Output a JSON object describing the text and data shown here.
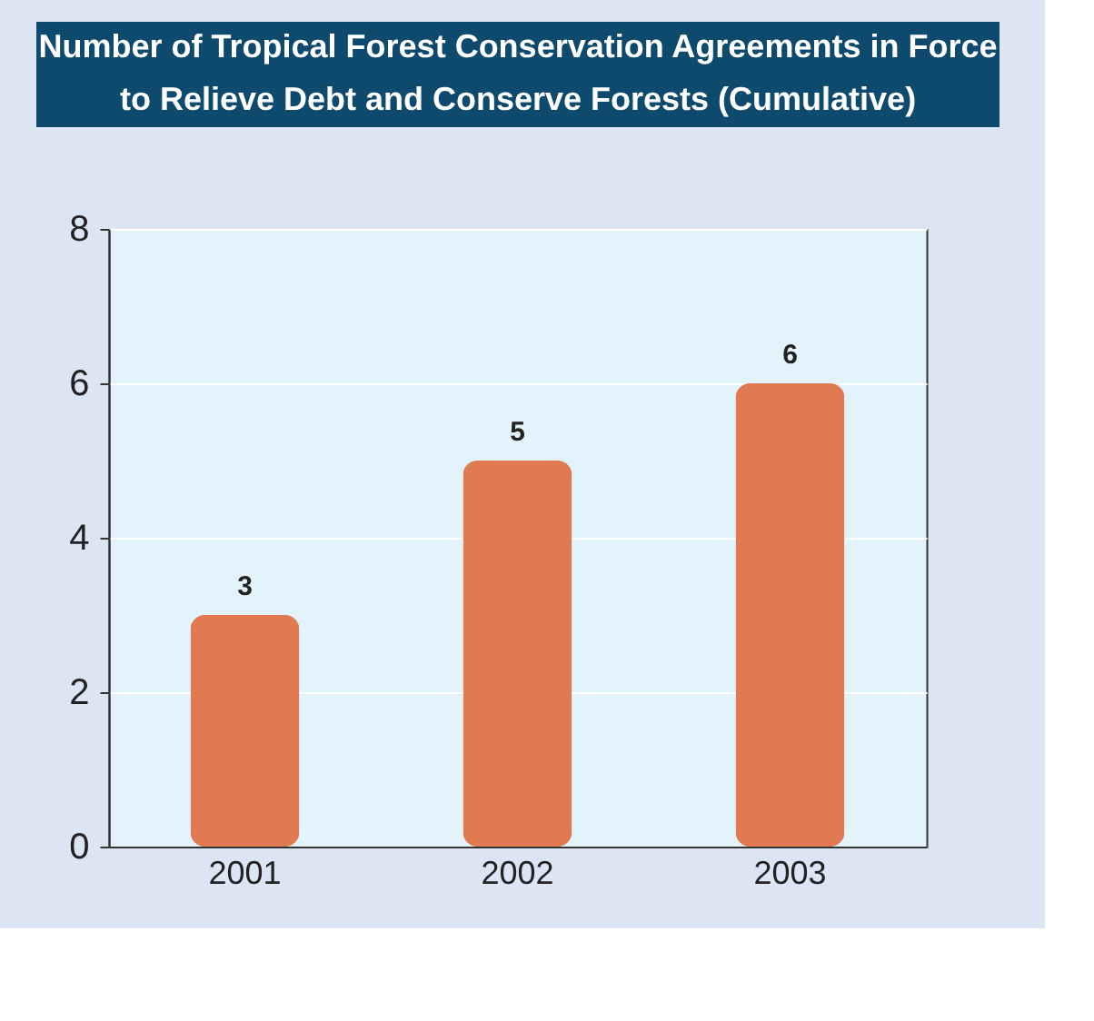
{
  "chart_data": {
    "type": "bar",
    "title": "Number of Tropical Forest Conservation Agreements in Force to Relieve Debt and Conserve Forests (Cumulative)",
    "categories": [
      "2001",
      "2002",
      "2003"
    ],
    "values": [
      3,
      5,
      6
    ],
    "color": "#e07a50",
    "ylim": [
      0,
      8
    ],
    "yticks": [
      0,
      2,
      4,
      6,
      8
    ],
    "grid": "y",
    "data_labels": true
  }
}
